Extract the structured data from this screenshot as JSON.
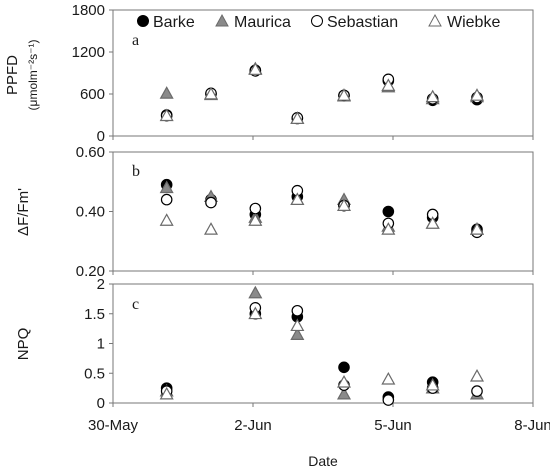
{
  "chart_data": {
    "type": "scatter",
    "xlabel": "Date",
    "x_ticks": [
      "30-May",
      "2-Jun",
      "5-Jun",
      "8-Jun"
    ],
    "legend": {
      "placement": "top",
      "entries": [
        "Barke",
        "Maurica",
        "Sebastian",
        "Wiebke"
      ]
    },
    "series_style": {
      "Barke": {
        "marker": "circle",
        "fill": "#000000",
        "stroke": "#000000"
      },
      "Maurica": {
        "marker": "triangle",
        "fill": "#8a8a8a",
        "stroke": "#6a6a6a"
      },
      "Sebastian": {
        "marker": "circle",
        "fill": "#ffffff",
        "stroke": "#000000"
      },
      "Wiebke": {
        "marker": "triangle",
        "fill": "#ffffff",
        "stroke": "#6a6a6a"
      }
    },
    "x_dates": [
      "31-May",
      "1-Jun",
      "2-Jun",
      "3-Jun",
      "4-Jun",
      "5-Jun",
      "6-Jun",
      "7-Jun"
    ],
    "panels": [
      {
        "id": "a",
        "letter": "a",
        "ylabel_main": "PPFD",
        "ylabel_unit": "(μmolm⁻²s⁻¹)",
        "ylim": [
          0,
          1800
        ],
        "yticks": [
          "0",
          "600",
          "1200",
          "1800"
        ],
        "series": [
          {
            "name": "Barke",
            "values": [
              300,
              600,
              940,
              250,
              580,
              790,
              510,
              520
            ]
          },
          {
            "name": "Maurica",
            "values": [
              610,
              590,
              960,
              250,
              570,
              700,
              530,
              560
            ]
          },
          {
            "name": "Sebastian",
            "values": [
              290,
              610,
              930,
              260,
              580,
              810,
              530,
              550
            ]
          },
          {
            "name": "Wiebke",
            "values": [
              290,
              600,
              950,
              250,
              580,
              720,
              560,
              580
            ]
          }
        ]
      },
      {
        "id": "b",
        "letter": "b",
        "ylabel_main": "ΔF/Fm'",
        "ylabel_unit": "",
        "ylim": [
          0.2,
          0.6
        ],
        "yticks": [
          "0.20",
          "0.40",
          "0.60"
        ],
        "series": [
          {
            "name": "Barke",
            "values": [
              0.49,
              0.44,
              0.39,
              0.45,
              0.42,
              0.4,
              0.38,
              0.34
            ]
          },
          {
            "name": "Maurica",
            "values": [
              0.48,
              0.45,
              0.38,
              0.44,
              0.44,
              0.35,
              0.36,
              0.34
            ]
          },
          {
            "name": "Sebastian",
            "values": [
              0.44,
              0.43,
              0.41,
              0.47,
              0.42,
              0.36,
              0.39,
              0.33
            ]
          },
          {
            "name": "Wiebke",
            "values": [
              0.37,
              0.34,
              0.37,
              0.44,
              0.42,
              0.34,
              0.36,
              0.34
            ]
          }
        ]
      },
      {
        "id": "c",
        "letter": "c",
        "ylabel_main": "NPQ",
        "ylabel_unit": "",
        "ylim": [
          0,
          2
        ],
        "yticks": [
          "0",
          "0.5",
          "1",
          "1.5",
          "2"
        ],
        "series": [
          {
            "name": "Barke",
            "values": [
              0.25,
              null,
              1.5,
              1.45,
              0.6,
              0.1,
              0.35,
              null
            ]
          },
          {
            "name": "Maurica",
            "values": [
              0.2,
              null,
              1.85,
              1.15,
              0.15,
              null,
              0.25,
              0.15
            ]
          },
          {
            "name": "Sebastian",
            "values": [
              0.2,
              null,
              1.6,
              1.55,
              0.3,
              0.05,
              0.25,
              0.2
            ]
          },
          {
            "name": "Wiebke",
            "values": [
              0.15,
              null,
              1.5,
              1.3,
              0.35,
              0.4,
              0.3,
              0.45
            ]
          }
        ]
      }
    ]
  }
}
